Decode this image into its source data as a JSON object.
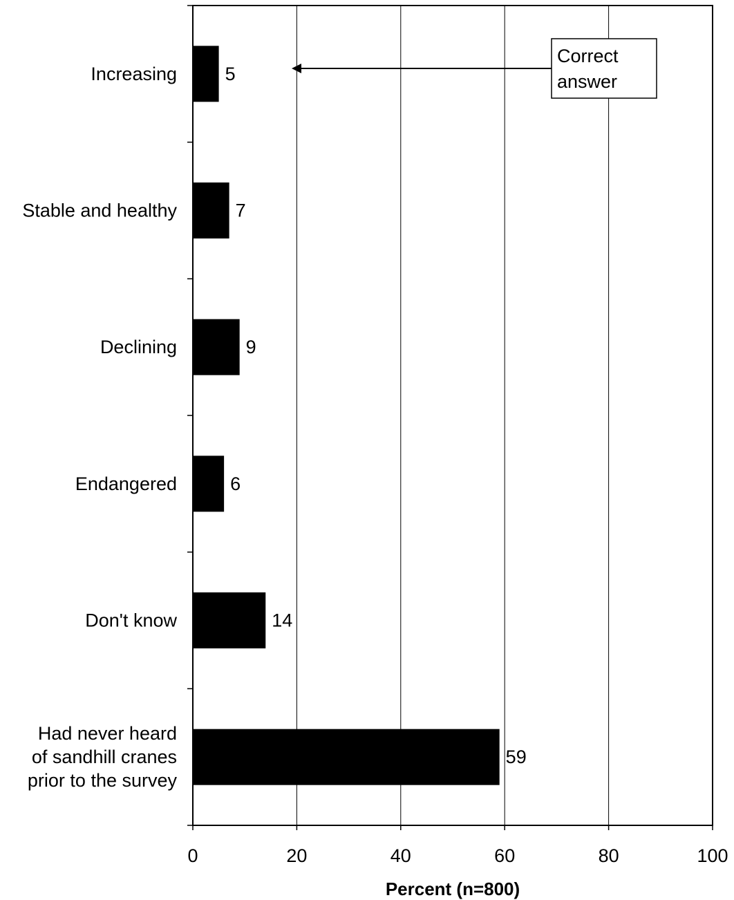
{
  "chart_data": {
    "type": "bar",
    "orientation": "horizontal",
    "categories": [
      [
        "Increasing"
      ],
      [
        "Stable and healthy"
      ],
      [
        "Declining"
      ],
      [
        "Endangered"
      ],
      [
        "Don't know"
      ],
      [
        "Had never heard",
        "of sandhill cranes",
        "prior to the survey"
      ]
    ],
    "values": [
      5,
      7,
      9,
      6,
      14,
      59
    ],
    "data_labels": [
      "5",
      "7",
      "9",
      "6",
      "14",
      "59"
    ],
    "xlabel": "Percent (n=800)",
    "xlim": [
      0,
      100
    ],
    "xticks": [
      0,
      20,
      40,
      60,
      80,
      100
    ],
    "xtick_labels": [
      "0",
      "20",
      "40",
      "60",
      "80",
      "100"
    ],
    "grid": "vertical",
    "bar_color": "#000000",
    "annotation": {
      "lines": [
        "Correct",
        "answer"
      ],
      "points_to_category": "Increasing"
    }
  }
}
